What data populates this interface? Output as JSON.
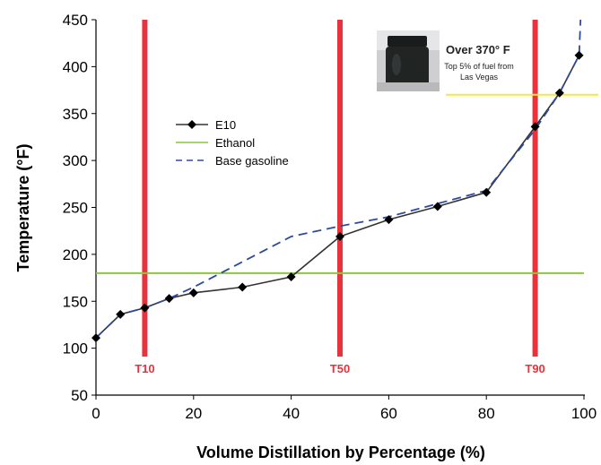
{
  "chart_data": {
    "type": "line",
    "xlabel": "Volume Distillation by Percentage (%)",
    "ylabel": "Temperature (°F)",
    "xlim": [
      0,
      100
    ],
    "ylim": [
      50,
      450
    ],
    "x_ticks": [
      "0",
      "20",
      "40",
      "60",
      "80",
      "100"
    ],
    "y_ticks": [
      "50",
      "100",
      "150",
      "200",
      "250",
      "300",
      "350",
      "400",
      "450"
    ],
    "grid": false,
    "legend_position": "upper-left",
    "series": [
      {
        "name": "E10",
        "color": "#333333",
        "marker": "diamond",
        "x": [
          0,
          5,
          10,
          15,
          20,
          30,
          40,
          50,
          60,
          70,
          80,
          90,
          95,
          99
        ],
        "y": [
          111,
          136,
          143,
          153,
          159,
          165,
          176,
          219,
          237,
          251,
          266,
          336,
          372,
          412
        ]
      },
      {
        "name": "Ethanol",
        "color": "#8cc63f",
        "style": "horizontal",
        "y": 180
      },
      {
        "name": "Base gasoline",
        "color": "#2e4b9b",
        "dash": true,
        "x": [
          0,
          5,
          10,
          15,
          20,
          30,
          40,
          50,
          60,
          70,
          80,
          90,
          95,
          99,
          99.3
        ],
        "y": [
          111,
          136,
          143,
          153,
          165,
          192,
          219,
          230,
          240,
          254,
          268,
          333,
          372,
          412,
          450
        ]
      }
    ],
    "reference_lines": [
      {
        "x": 10,
        "label": "T10",
        "color": "#e8323c"
      },
      {
        "x": 50,
        "label": "T50",
        "color": "#e8323c"
      },
      {
        "x": 90,
        "label": "T90",
        "color": "#e8323c"
      }
    ],
    "threshold": {
      "y": 370,
      "color": "#f4ea37"
    },
    "annotation": {
      "title": "Over 370° F",
      "line1": "Top 5% of fuel from",
      "line2": "Las Vegas",
      "photo": "jar-of-dark-fuel-photo"
    }
  }
}
